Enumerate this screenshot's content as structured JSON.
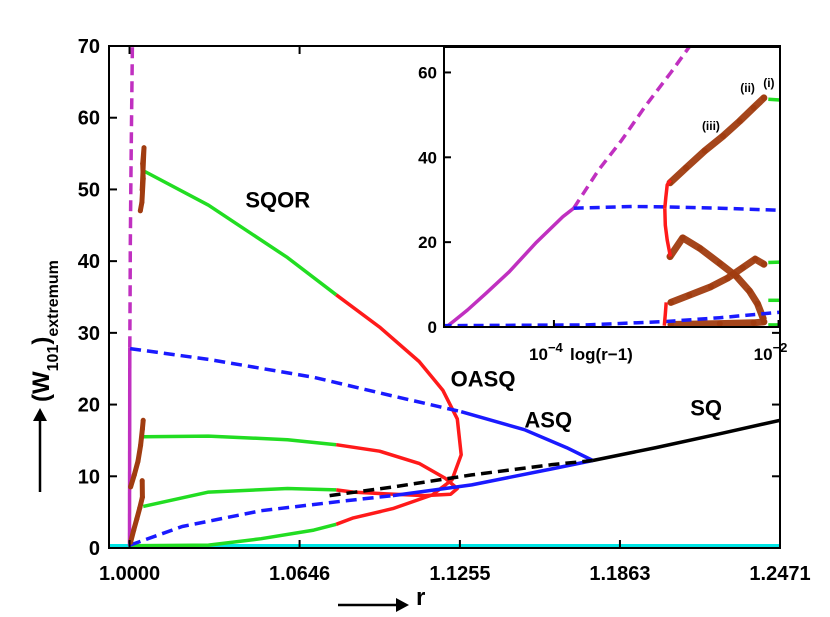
{
  "chart_data": [
    {
      "type": "line",
      "xlabel": "r",
      "ylabel_main": "(W",
      "ylabel_sub": "101",
      "ylabel_close": ")",
      "ylabel_sub2": "extremum",
      "xlim": [
        0.9922,
        1.2471
      ],
      "ylim": [
        0,
        70
      ],
      "xticks": [
        1.0,
        1.0646,
        1.1255,
        1.1863,
        1.2471
      ],
      "xtick_labels": [
        "1.0000",
        "1.0646",
        "1.1255",
        "1.1863",
        "1.2471"
      ],
      "yticks": [
        0,
        10,
        20,
        30,
        40,
        50,
        60,
        70
      ],
      "ytick_labels": [
        "0",
        "10",
        "20",
        "30",
        "40",
        "50",
        "60",
        "70"
      ],
      "region_labels": [
        {
          "text": "SQOR",
          "x": 1.044,
          "y": 47.5
        },
        {
          "text": "OASQ",
          "x": 1.122,
          "y": 22.5
        },
        {
          "text": "ASQ",
          "x": 1.15,
          "y": 16.8
        },
        {
          "text": "SQ",
          "x": 1.213,
          "y": 18.5
        }
      ],
      "colors": {
        "magenta": "#c030c0",
        "green": "#22dd22",
        "red": "#ff1a1a",
        "blue": "#1a1aff",
        "black": "#000000",
        "cyan": "#00e5e5",
        "brown": "#a03c10"
      },
      "series": [
        {
          "name": "cyan-zero",
          "color": "cyan",
          "style": "solid",
          "points": [
            [
              0.9922,
              0.3
            ],
            [
              1.2471,
              0.3
            ]
          ]
        },
        {
          "name": "magenta-dashed",
          "color": "magenta",
          "style": "dashed",
          "points": [
            [
              1.0001,
              28
            ],
            [
              1.0002,
              35
            ],
            [
              1.0003,
              42
            ],
            [
              1.0005,
              50
            ],
            [
              1.0007,
              58
            ],
            [
              1.0009,
              64
            ],
            [
              1.0011,
              70
            ]
          ]
        },
        {
          "name": "magenta-solid",
          "color": "magenta",
          "style": "solid",
          "points": [
            [
              1.0,
              0.3
            ],
            [
              1.0001,
              28
            ]
          ]
        },
        {
          "name": "upper-green",
          "color": "green",
          "style": "solid",
          "points": [
            [
              1.0058,
              52.5
            ],
            [
              1.03,
              47.8
            ],
            [
              1.06,
              40.5
            ],
            [
              1.0785,
              35.3
            ]
          ]
        },
        {
          "name": "upper-red",
          "color": "red",
          "style": "solid",
          "points": [
            [
              1.0785,
              35.3
            ],
            [
              1.095,
              30.8
            ],
            [
              1.11,
              26
            ],
            [
              1.119,
              22
            ],
            [
              1.1245,
              18
            ],
            [
              1.126,
              13
            ],
            [
              1.1225,
              9.5
            ],
            [
              1.115,
              7.4
            ],
            [
              1.1,
              5.5
            ],
            [
              1.085,
              4.2
            ],
            [
              1.0785,
              3.3
            ]
          ]
        },
        {
          "name": "mid-green",
          "color": "green",
          "style": "solid",
          "points": [
            [
              1.0052,
              15.5
            ],
            [
              1.03,
              15.6
            ],
            [
              1.06,
              15.1
            ],
            [
              1.0785,
              14.4
            ]
          ]
        },
        {
          "name": "mid-red",
          "color": "red",
          "style": "solid",
          "points": [
            [
              1.0785,
              14.4
            ],
            [
              1.095,
              13.5
            ],
            [
              1.11,
              11.8
            ],
            [
              1.12,
              9.7
            ],
            [
              1.1245,
              8.3
            ],
            [
              1.122,
              7.5
            ],
            [
              1.112,
              7.3
            ],
            [
              1.095,
              7.6
            ],
            [
              1.085,
              7.8
            ],
            [
              1.0785,
              8.1
            ]
          ]
        },
        {
          "name": "low-green",
          "color": "green",
          "style": "solid",
          "points": [
            [
              1.0052,
              5.8
            ],
            [
              1.03,
              7.8
            ],
            [
              1.06,
              8.3
            ],
            [
              1.0785,
              8.1
            ]
          ]
        },
        {
          "name": "bottom-green",
          "color": "green",
          "style": "solid",
          "points": [
            [
              1.0,
              0.3
            ],
            [
              1.03,
              0.4
            ],
            [
              1.05,
              1.3
            ],
            [
              1.07,
              2.5
            ],
            [
              1.0785,
              3.3
            ]
          ]
        },
        {
          "name": "blue-dashed-upper",
          "color": "blue",
          "style": "dashed",
          "points": [
            [
              1.0002,
              27.8
            ],
            [
              1.03,
              26.3
            ],
            [
              1.07,
              23.8
            ],
            [
              1.1,
              21.2
            ],
            [
              1.126,
              19
            ]
          ]
        },
        {
          "name": "blue-solid-upper",
          "color": "blue",
          "style": "solid",
          "points": [
            [
              1.126,
              19
            ],
            [
              1.15,
              16.5
            ],
            [
              1.166,
              14
            ],
            [
              1.176,
              12.2
            ]
          ]
        },
        {
          "name": "blue-dashed-lower",
          "color": "blue",
          "style": "dashed",
          "points": [
            [
              1.0002,
              0.4
            ],
            [
              1.02,
              3
            ],
            [
              1.05,
              5.2
            ],
            [
              1.08,
              6.5
            ],
            [
              1.1,
              7.3
            ]
          ]
        },
        {
          "name": "blue-solid-lower",
          "color": "blue",
          "style": "solid",
          "points": [
            [
              1.1,
              7.3
            ],
            [
              1.13,
              8.8
            ],
            [
              1.16,
              11
            ],
            [
              1.176,
              12.2
            ]
          ]
        },
        {
          "name": "black-dashed",
          "color": "black",
          "style": "dashed",
          "points": [
            [
              1.076,
              7.3
            ],
            [
              1.1,
              8.5
            ],
            [
              1.13,
              10.2
            ],
            [
              1.16,
              11.6
            ],
            [
              1.176,
              12.2
            ]
          ]
        },
        {
          "name": "black-solid",
          "color": "black",
          "style": "solid",
          "points": [
            [
              1.176,
              12.2
            ],
            [
              1.2,
              14
            ],
            [
              1.225,
              16
            ],
            [
              1.2471,
              17.8
            ]
          ]
        }
      ],
      "scatter_clusters": [
        {
          "name": "brown-upper",
          "color": "brown",
          "points": [
            [
              1.0041,
              47
            ],
            [
              1.0047,
              48.2
            ],
            [
              1.0052,
              51.5
            ],
            [
              1.005,
              53.6
            ],
            [
              1.0055,
              55.8
            ],
            [
              1.0048,
              49.9
            ]
          ]
        },
        {
          "name": "brown-mid",
          "color": "brown",
          "points": [
            [
              1.0004,
              8.5
            ],
            [
              1.0018,
              10.2
            ],
            [
              1.0032,
              12.1
            ],
            [
              1.0042,
              14.3
            ],
            [
              1.0049,
              16.6
            ],
            [
              1.0052,
              17.8
            ]
          ]
        },
        {
          "name": "brown-low",
          "color": "brown",
          "points": [
            [
              1.0004,
              0.8
            ],
            [
              1.0016,
              2.5
            ],
            [
              1.0028,
              4.1
            ],
            [
              1.0039,
              5.6
            ],
            [
              1.0049,
              7.1
            ],
            [
              1.0048,
              9.4
            ]
          ]
        }
      ]
    },
    {
      "type": "line",
      "subtitle": "inset",
      "xlabel": "log(r−1)",
      "xscale": "log",
      "xlim": [
        1.05e-05,
        0.0103
      ],
      "ylim": [
        0,
        66
      ],
      "xtick_base": [
        "10",
        "10"
      ],
      "xtick_exp": [
        "−4",
        "−2"
      ],
      "xtick_values": [
        0.0001,
        0.01
      ],
      "yticks": [
        0,
        20,
        40,
        60
      ],
      "ytick_labels": [
        "0",
        "20",
        "40",
        "60"
      ],
      "annotations": [
        {
          "text": "(iii)",
          "x": 0.0025,
          "y": 46.4
        },
        {
          "text": "(ii)",
          "x": 0.0053,
          "y": 55.4
        },
        {
          "text": "(i)",
          "x": 0.0082,
          "y": 56.6
        }
      ],
      "series": [
        {
          "name": "inset-magenta-solid",
          "color": "magenta",
          "style": "solid",
          "points": [
            [
              1.1e-05,
              0
            ],
            [
              1.3e-05,
              1.5
            ],
            [
              1.7e-05,
              4
            ],
            [
              2.5e-05,
              8
            ],
            [
              4e-05,
              13
            ],
            [
              7e-05,
              20
            ],
            [
              0.00012,
              26
            ],
            [
              0.00015,
              28
            ]
          ]
        },
        {
          "name": "inset-magenta-dashed",
          "color": "magenta",
          "style": "dashed",
          "points": [
            [
              0.00015,
              28
            ],
            [
              0.00025,
              37
            ],
            [
              0.0004,
              44
            ],
            [
              0.00065,
              52
            ],
            [
              0.0011,
              60
            ],
            [
              0.0016,
              66
            ]
          ]
        },
        {
          "name": "inset-blue-upper",
          "color": "blue",
          "style": "dashed",
          "points": [
            [
              0.00015,
              28
            ],
            [
              0.0005,
              28.4
            ],
            [
              0.001,
              28.3
            ],
            [
              0.003,
              28
            ],
            [
              0.0103,
              27.5
            ]
          ]
        },
        {
          "name": "inset-blue-lower",
          "color": "blue",
          "style": "dashed",
          "points": [
            [
              1e-05,
              0.3
            ],
            [
              0.0002,
              0.5
            ],
            [
              0.001,
              1.3
            ],
            [
              0.003,
              2.2
            ],
            [
              0.0103,
              3.5
            ]
          ]
        },
        {
          "name": "inset-red-upper",
          "color": "red",
          "style": "solid",
          "points": [
            [
              0.00097,
              28
            ],
            [
              0.00099,
              30.5
            ],
            [
              0.00102,
              33.5
            ],
            [
              0.00109,
              34.6
            ]
          ]
        },
        {
          "name": "inset-red-lower",
          "color": "red",
          "style": "solid",
          "points": [
            [
              0.00109,
              16.6
            ],
            [
              0.00102,
              20.5
            ],
            [
              0.00098,
              24
            ],
            [
              0.00097,
              28
            ]
          ]
        },
        {
          "name": "inset-red-bottom",
          "color": "red",
          "style": "solid",
          "points": [
            [
              0.00096,
              0.3
            ],
            [
              0.00098,
              3
            ],
            [
              0.001,
              5.8
            ]
          ]
        },
        {
          "name": "inset-green-1",
          "color": "green",
          "style": "solid",
          "points": [
            [
              0.0081,
              53.7
            ],
            [
              0.0103,
              53.5
            ]
          ]
        },
        {
          "name": "inset-green-2",
          "color": "green",
          "style": "solid",
          "points": [
            [
              0.0081,
              15.2
            ],
            [
              0.0103,
              15.3
            ]
          ]
        },
        {
          "name": "inset-green-3",
          "color": "green",
          "style": "solid",
          "points": [
            [
              0.0081,
              6.3
            ],
            [
              0.0103,
              6.3
            ]
          ]
        },
        {
          "name": "inset-green-4",
          "color": "green",
          "style": "solid",
          "points": [
            [
              0.0081,
              0.5
            ],
            [
              0.0103,
              0.5
            ]
          ]
        }
      ],
      "scatter_bands": [
        {
          "name": "inset-brown-up",
          "color": "brown",
          "points": [
            [
              0.00108,
              34
            ],
            [
              0.0015,
              37.5
            ],
            [
              0.0022,
              41.5
            ],
            [
              0.0032,
              45
            ],
            [
              0.0045,
              48.5
            ],
            [
              0.006,
              51.7
            ],
            [
              0.0074,
              54
            ]
          ]
        },
        {
          "name": "inset-brown-down",
          "color": "brown",
          "points": [
            [
              0.00108,
              16.6
            ],
            [
              0.0014,
              21
            ],
            [
              0.002,
              18.5
            ],
            [
              0.003,
              15
            ],
            [
              0.0042,
              12
            ],
            [
              0.0055,
              8.5
            ],
            [
              0.0065,
              5.5
            ],
            [
              0.0073,
              2
            ]
          ]
        },
        {
          "name": "inset-brown-rise",
          "color": "brown",
          "points": [
            [
              0.0011,
              5.8
            ],
            [
              0.0016,
              7.5
            ],
            [
              0.0025,
              9.5
            ],
            [
              0.0035,
              11.5
            ],
            [
              0.0048,
              14
            ],
            [
              0.0062,
              16
            ],
            [
              0.0074,
              14.8
            ]
          ]
        },
        {
          "name": "inset-brown-floor",
          "color": "brown",
          "points": [
            [
              0.0011,
              0.6
            ],
            [
              0.003,
              0.8
            ],
            [
              0.006,
              1
            ],
            [
              0.0074,
              1.2
            ]
          ]
        }
      ]
    }
  ]
}
